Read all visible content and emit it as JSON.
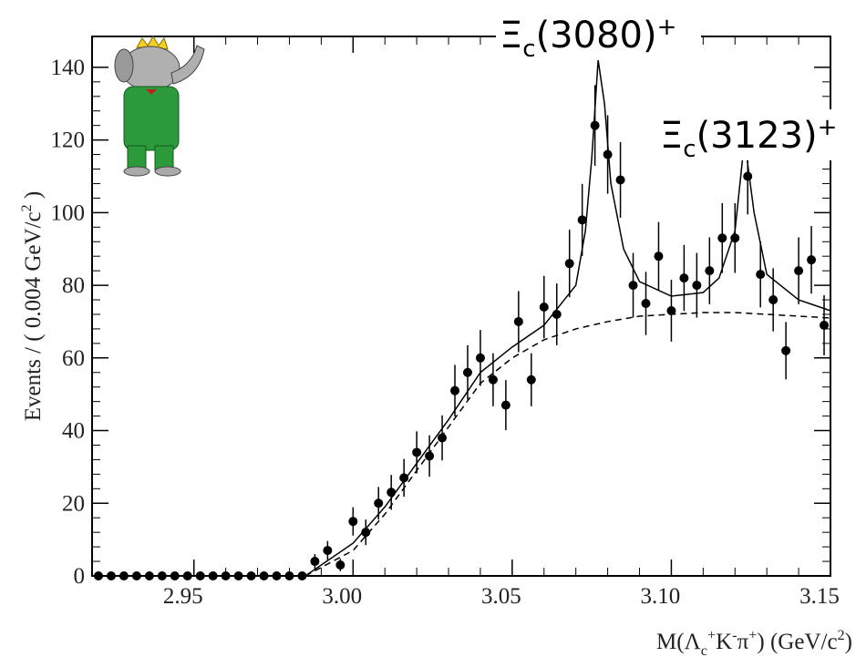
{
  "chart_data": {
    "type": "scatter",
    "annotations": [
      {
        "parts": [
          {
            "text": "Ξ"
          },
          {
            "text": "c",
            "shift": "sub"
          },
          {
            "text": "(3080)"
          },
          {
            "text": "+",
            "shift": "sup"
          }
        ]
      },
      {
        "parts": [
          {
            "text": "Ξ"
          },
          {
            "text": "c",
            "shift": "sub"
          },
          {
            "text": "(3123)"
          },
          {
            "text": "+",
            "shift": "sup"
          }
        ]
      }
    ],
    "ylabel": [
      {
        "text": "Events / ( 0.004 GeV/c"
      },
      {
        "text": "2",
        "shift": "sup"
      },
      {
        "text": " )"
      }
    ],
    "xlabel": [
      {
        "text": "M(Λ"
      },
      {
        "text": "c",
        "shift": "sub"
      },
      {
        "text": "+",
        "shift": "sup"
      },
      {
        "text": "K"
      },
      {
        "text": "-",
        "shift": "sup"
      },
      {
        "text": "π"
      },
      {
        "text": "+",
        "shift": "sup"
      },
      {
        "text": ") (GeV/c"
      },
      {
        "text": "2",
        "shift": "sup"
      },
      {
        "text": ")"
      }
    ],
    "xlim": [
      2.918,
      3.15
    ],
    "ylim": [
      0,
      148.5
    ],
    "xticks": [
      {
        "value": 2.95,
        "label": "2.95"
      },
      {
        "value": 3,
        "label": "3.00"
      },
      {
        "value": 3.05,
        "label": "3.05"
      },
      {
        "value": 3.1,
        "label": "3.10"
      },
      {
        "value": 3.15,
        "label": "3.15"
      }
    ],
    "yticks": [
      0,
      20,
      40,
      60,
      80,
      100,
      120,
      140
    ],
    "series": [
      {
        "style": "points",
        "color": "#000000",
        "x": [
          2.92,
          2.924,
          2.928,
          2.932,
          2.936,
          2.94,
          2.944,
          2.948,
          2.952,
          2.956,
          2.96,
          2.964,
          2.968,
          2.972,
          2.976,
          2.98,
          2.984,
          2.988,
          2.992,
          2.996,
          3.0,
          3.004,
          3.008,
          3.012,
          3.016,
          3.02,
          3.024,
          3.028,
          3.032,
          3.036,
          3.04,
          3.044,
          3.048,
          3.052,
          3.056,
          3.06,
          3.064,
          3.068,
          3.072,
          3.076,
          3.08,
          3.084,
          3.088,
          3.092,
          3.096,
          3.1,
          3.104,
          3.108,
          3.112,
          3.116,
          3.12,
          3.124,
          3.128,
          3.132,
          3.136,
          3.14,
          3.144,
          3.148
        ],
        "values": [
          0,
          0,
          0,
          0,
          0,
          0,
          0,
          0,
          0,
          0,
          0,
          0,
          0,
          0,
          0,
          0,
          0,
          4,
          7,
          3,
          15,
          12,
          20,
          23,
          27,
          34,
          33,
          38,
          51,
          56,
          60,
          54,
          47,
          70,
          54,
          74,
          72,
          86,
          98,
          124,
          116,
          109,
          80,
          75,
          88,
          73,
          82,
          80,
          84,
          93,
          93,
          110,
          83,
          76,
          62,
          84,
          87,
          69
        ],
        "errors": [
          0,
          0,
          0,
          0,
          0,
          0,
          0,
          0,
          0,
          0,
          0,
          0,
          0,
          0,
          0,
          0,
          0,
          2,
          2.6,
          1.7,
          3.9,
          3.5,
          4.5,
          4.8,
          5.2,
          5.8,
          5.7,
          6.2,
          7.1,
          7.5,
          7.7,
          7.3,
          6.9,
          8.4,
          7.3,
          8.6,
          8.5,
          9.3,
          9.9,
          11.1,
          10.8,
          10.4,
          8.9,
          8.7,
          9.4,
          8.5,
          9.1,
          8.9,
          9.2,
          9.6,
          9.6,
          10.5,
          9.1,
          8.7,
          7.9,
          9.2,
          9.3,
          8.3
        ]
      },
      {
        "style": "solid",
        "color": "#000000",
        "x": [
          2.985,
          3.0,
          3.01,
          3.02,
          3.03,
          3.04,
          3.05,
          3.06,
          3.07,
          3.073,
          3.075,
          3.077,
          3.079,
          3.081,
          3.085,
          3.09,
          3.1,
          3.11,
          3.115,
          3.12,
          3.123,
          3.126,
          3.13,
          3.14,
          3.15
        ],
        "values": [
          0,
          9,
          19,
          31,
          43,
          56,
          63,
          69,
          80,
          95,
          115,
          142,
          130,
          108,
          90,
          81,
          77,
          78,
          82,
          95,
          120,
          100,
          83,
          76,
          73
        ]
      },
      {
        "style": "dashed",
        "color": "#000000",
        "x": [
          2.985,
          3.0,
          3.01,
          3.02,
          3.03,
          3.04,
          3.05,
          3.06,
          3.07,
          3.08,
          3.09,
          3.1,
          3.11,
          3.12,
          3.13,
          3.14,
          3.15
        ],
        "values": [
          0,
          7,
          17,
          29,
          41,
          53,
          60,
          65,
          68,
          70,
          71.5,
          72,
          72.5,
          72.5,
          72,
          71.5,
          71
        ]
      }
    ]
  }
}
